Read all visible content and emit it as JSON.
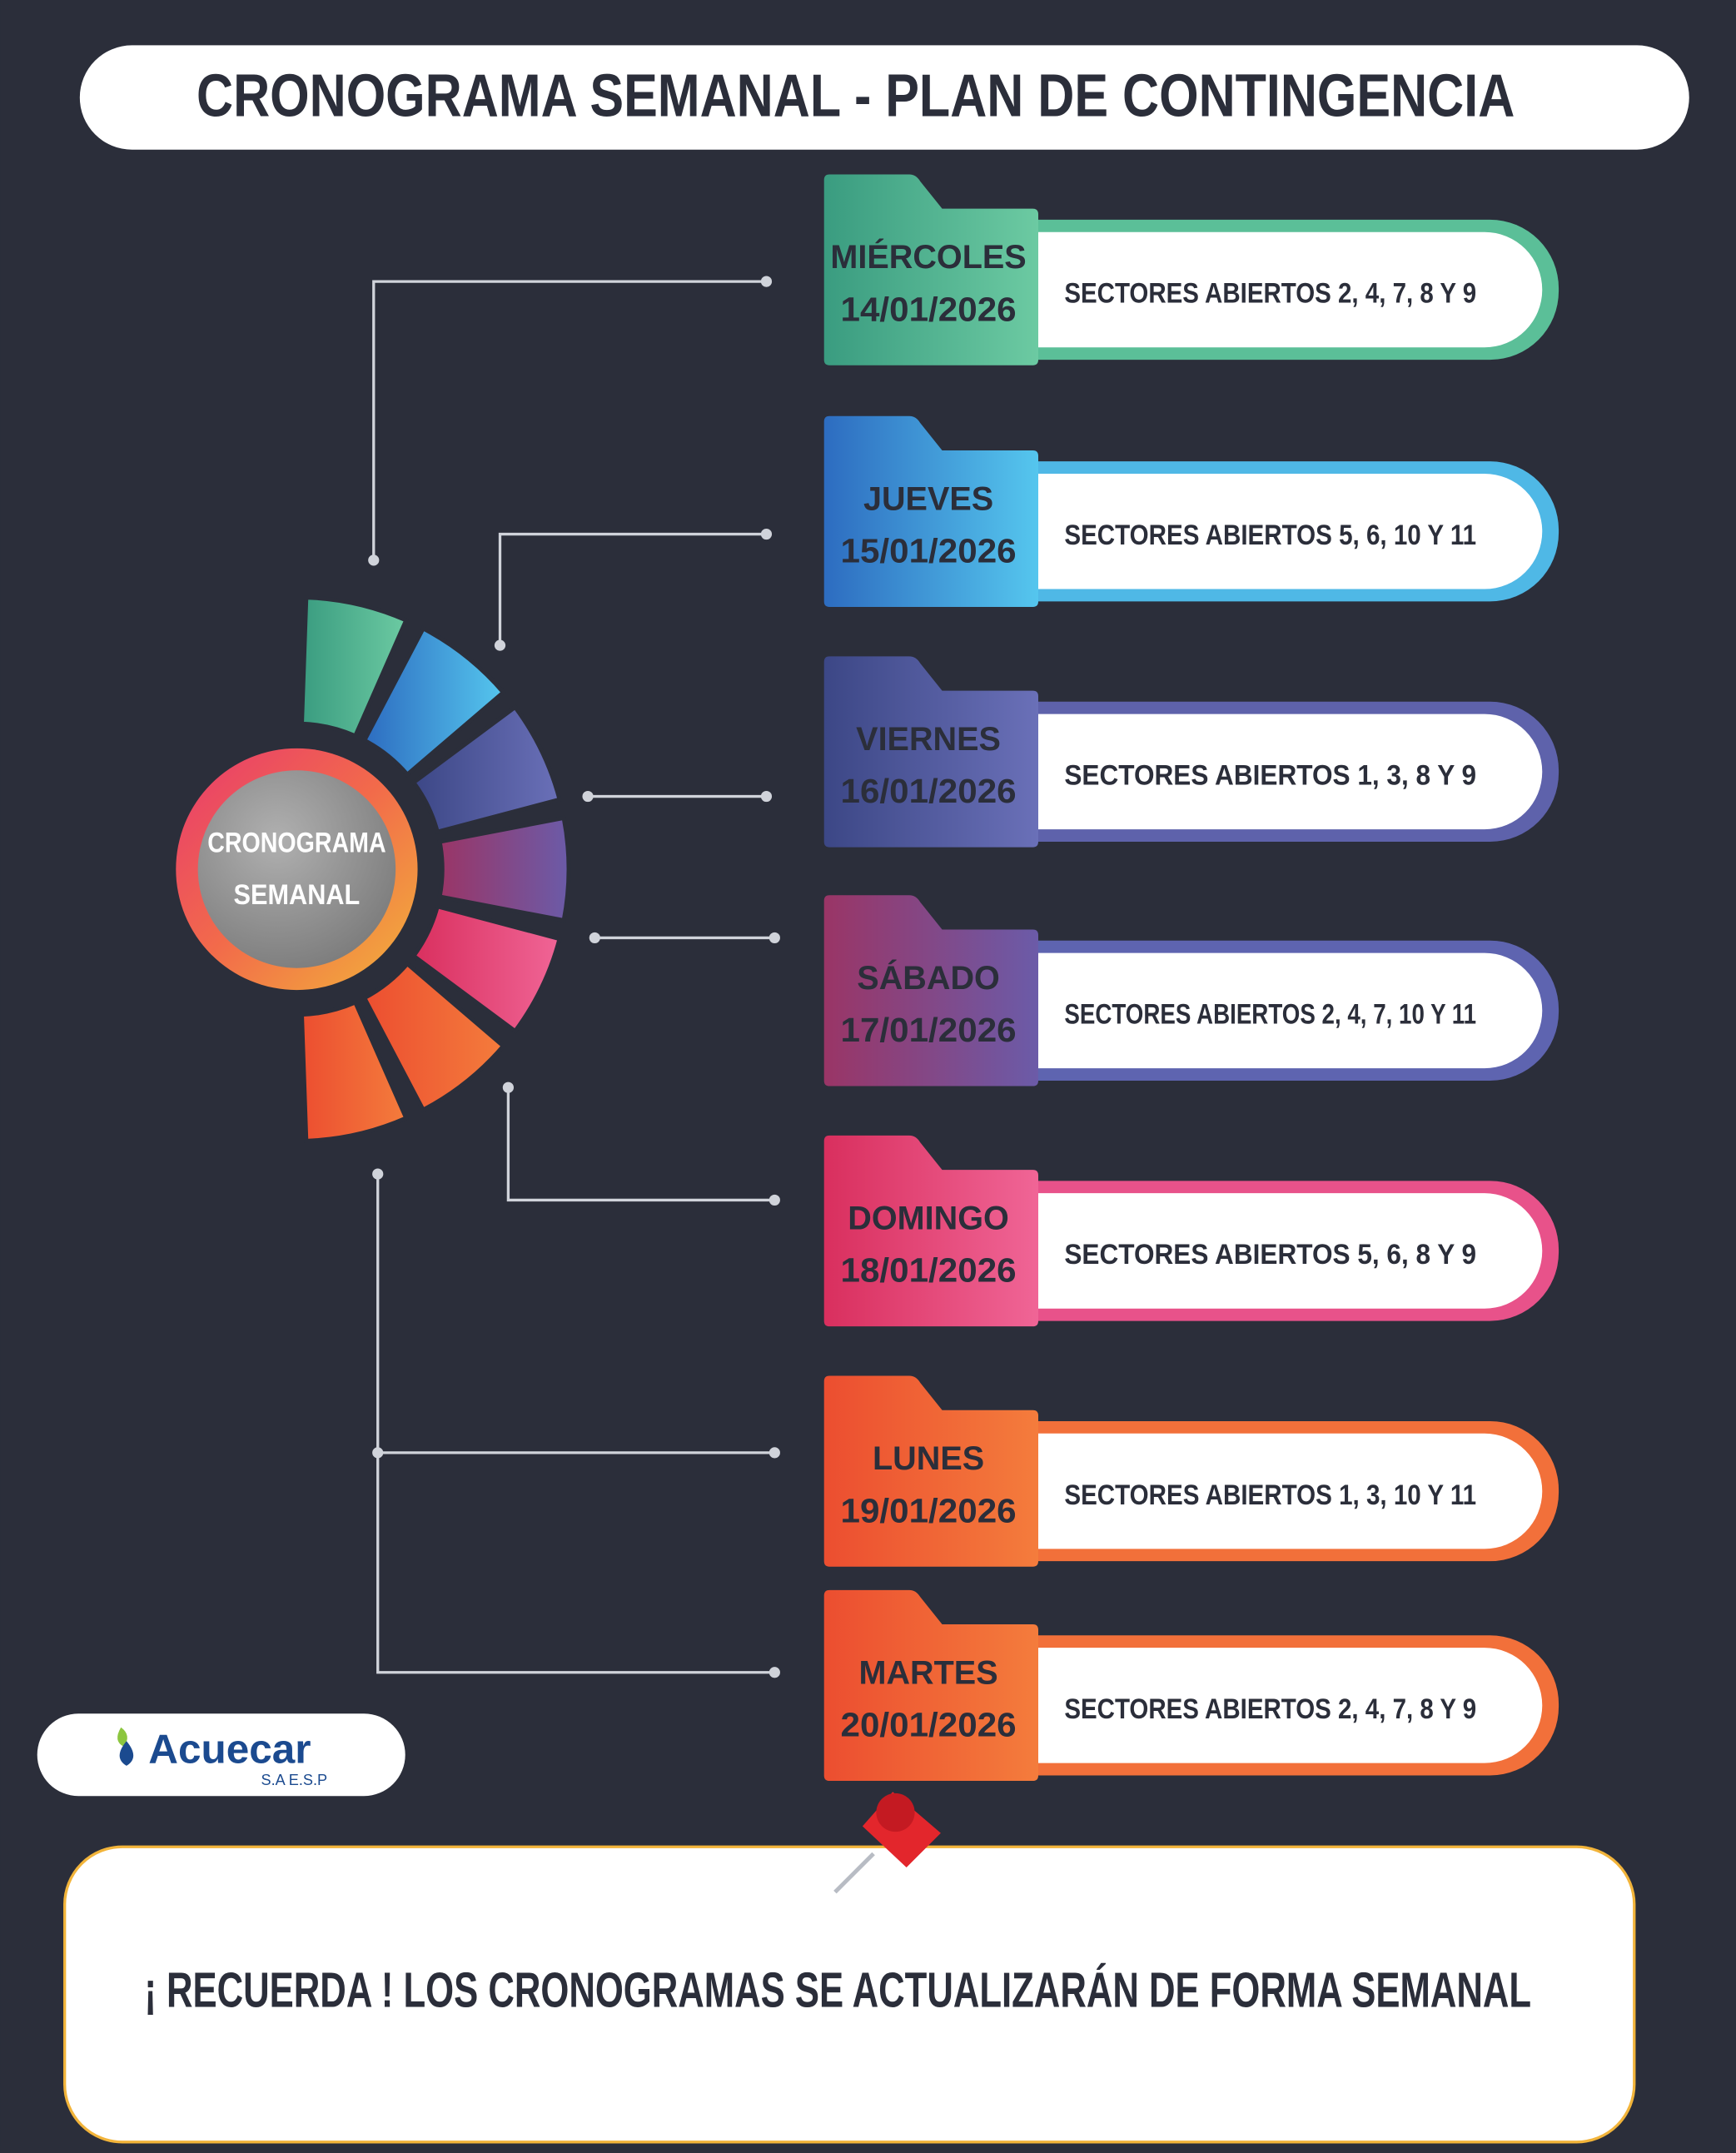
{
  "header": {
    "title": "CRONOGRAMA SEMANAL - PLAN DE CONTINGENCIA"
  },
  "center": {
    "line1": "CRONOGRAMA",
    "line2": "SEMANAL"
  },
  "days": [
    {
      "day": "MIÉRCOLES",
      "date": "14/01/2026",
      "sectors": "SECTORES ABIERTOS  2, 4, 7, 8 Y 9"
    },
    {
      "day": "JUEVES",
      "date": "15/01/2026",
      "sectors": "SECTORES ABIERTOS 5, 6, 10 Y 11"
    },
    {
      "day": "VIERNES",
      "date": "16/01/2026",
      "sectors": "SECTORES ABIERTOS 1, 3, 8 Y 9"
    },
    {
      "day": "SÁBADO",
      "date": "17/01/2026",
      "sectors": "SECTORES ABIERTOS 2, 4, 7, 10 Y 11"
    },
    {
      "day": "DOMINGO",
      "date": "18/01/2026",
      "sectors": "SECTORES ABIERTOS 5, 6, 8 Y 9"
    },
    {
      "day": "LUNES",
      "date": "19/01/2026",
      "sectors": "SECTORES ABIERTOS 1, 3, 10 Y 11"
    },
    {
      "day": "MARTES",
      "date": "20/01/2026",
      "sectors": "SECTORES ABIERTOS 2, 4, 7, 8 Y 9"
    }
  ],
  "logo": {
    "name": "Acuecar",
    "subtitle": "S.A E.S.P"
  },
  "reminder": {
    "text": "¡ RECUERDA ! LOS CRONOGRAMAS SE ACTUALIZARÁN DE FORMA SEMANAL"
  }
}
